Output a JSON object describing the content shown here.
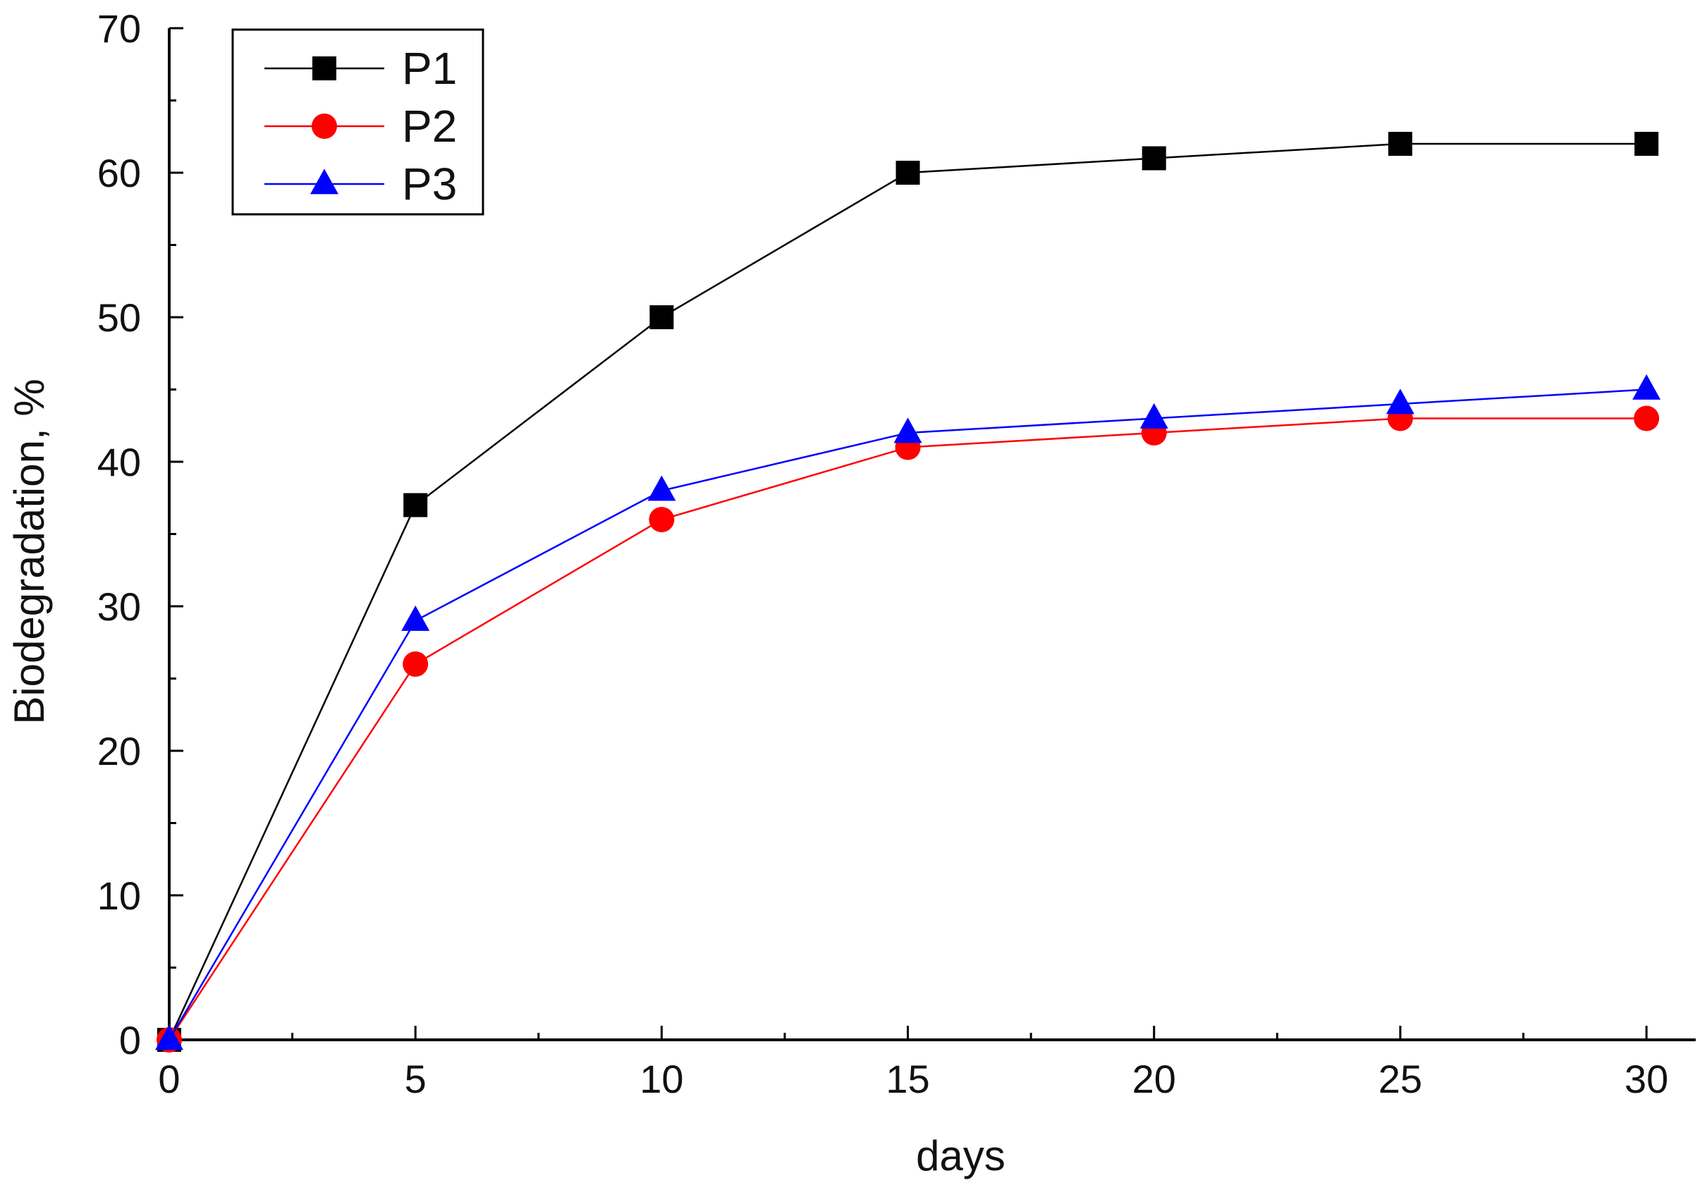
{
  "chart_data": {
    "type": "line",
    "title": "",
    "xlabel": "days",
    "ylabel": "Biodegradation, %",
    "xlim": [
      0,
      31
    ],
    "ylim": [
      0,
      70
    ],
    "xticks": [
      0,
      5,
      10,
      15,
      20,
      25,
      30
    ],
    "yticks": [
      0,
      10,
      20,
      30,
      40,
      50,
      60,
      70
    ],
    "x": [
      0,
      5,
      10,
      15,
      20,
      25,
      30
    ],
    "series": [
      {
        "name": "P1",
        "color": "#000000",
        "line_color": "#000000",
        "marker": "square",
        "values": [
          0,
          37,
          50,
          60,
          61,
          62,
          62
        ]
      },
      {
        "name": "P2",
        "color": "#ff0000",
        "line_color": "#ff0000",
        "marker": "circle",
        "values": [
          0,
          26,
          36,
          41,
          42,
          43,
          43
        ]
      },
      {
        "name": "P3",
        "color": "#0000ff",
        "line_color": "#0000ff",
        "marker": "triangle",
        "values": [
          0,
          29,
          38,
          42,
          43,
          44,
          45
        ]
      }
    ],
    "legend_position": "top-left",
    "grid": false
  }
}
